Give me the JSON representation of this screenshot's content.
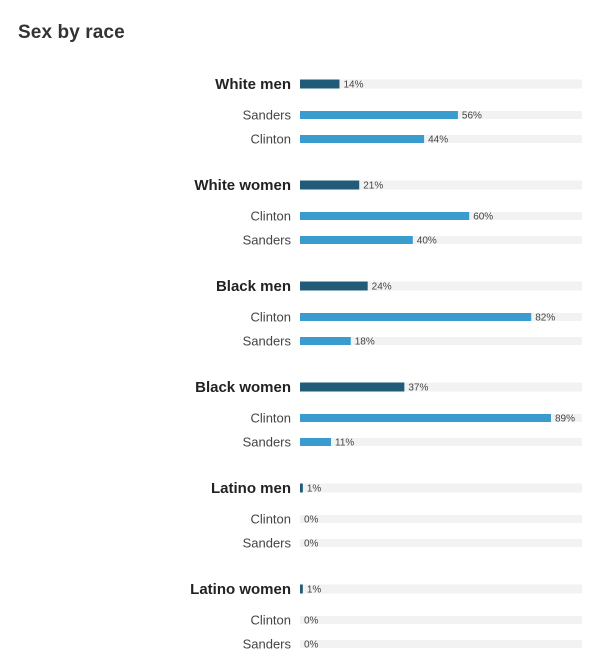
{
  "title": "Sex by race",
  "colors": {
    "group_bar": "#215b77",
    "candidate_bar": "#3a9bce",
    "track": "#f2f2f2"
  },
  "chart_data": {
    "type": "bar",
    "orientation": "horizontal",
    "title": "Sex by race",
    "xlim": [
      0,
      100
    ],
    "unit": "%",
    "groups": [
      {
        "label": "White men",
        "value": 14,
        "display": "14%",
        "candidates": [
          {
            "label": "Sanders",
            "value": 56,
            "display": "56%"
          },
          {
            "label": "Clinton",
            "value": 44,
            "display": "44%"
          }
        ]
      },
      {
        "label": "White women",
        "value": 21,
        "display": "21%",
        "candidates": [
          {
            "label": "Clinton",
            "value": 60,
            "display": "60%"
          },
          {
            "label": "Sanders",
            "value": 40,
            "display": "40%"
          }
        ]
      },
      {
        "label": "Black men",
        "value": 24,
        "display": "24%",
        "candidates": [
          {
            "label": "Clinton",
            "value": 82,
            "display": "82%"
          },
          {
            "label": "Sanders",
            "value": 18,
            "display": "18%"
          }
        ]
      },
      {
        "label": "Black women",
        "value": 37,
        "display": "37%",
        "candidates": [
          {
            "label": "Clinton",
            "value": 89,
            "display": "89%"
          },
          {
            "label": "Sanders",
            "value": 11,
            "display": "11%"
          }
        ]
      },
      {
        "label": "Latino men",
        "value": 1,
        "display": "1%",
        "candidates": [
          {
            "label": "Clinton",
            "value": 0,
            "display": "0%"
          },
          {
            "label": "Sanders",
            "value": 0,
            "display": "0%"
          }
        ]
      },
      {
        "label": "Latino women",
        "value": 1,
        "display": "1%",
        "candidates": [
          {
            "label": "Clinton",
            "value": 0,
            "display": "0%"
          },
          {
            "label": "Sanders",
            "value": 0,
            "display": "0%"
          }
        ]
      }
    ]
  }
}
